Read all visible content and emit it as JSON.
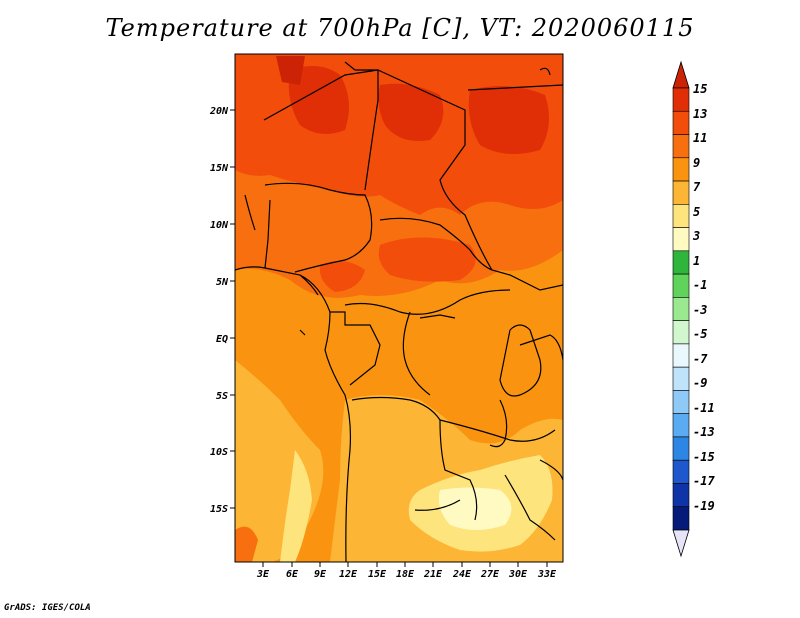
{
  "title": "Temperature at 700hPa [C], VT: 2020060115",
  "credit": "GrADS: IGES/COLA",
  "map": {
    "lat_labels": [
      "20N",
      "15N",
      "10N",
      "5N",
      "EQ",
      "5S",
      "10S",
      "15S"
    ],
    "lon_labels": [
      "3E",
      "6E",
      "9E",
      "12E",
      "15E",
      "18E",
      "21E",
      "24E",
      "27E",
      "30E",
      "33E"
    ]
  },
  "colorbar": {
    "labels": [
      "15",
      "13",
      "11",
      "9",
      "7",
      "5",
      "3",
      "1",
      "-1",
      "-3",
      "-5",
      "-7",
      "-9",
      "-11",
      "-13",
      "-15",
      "-17",
      "-19"
    ],
    "colors": [
      "#e02e06",
      "#f24d0b",
      "#f76f0f",
      "#fa9410",
      "#fcb535",
      "#fde47c",
      "#fffac2",
      "#2fb53c",
      "#5fd35a",
      "#9ae88f",
      "#d2f7cf",
      "#eaf7fc",
      "#bfe3fb",
      "#8ec9f7",
      "#5aabf1",
      "#2e86e4",
      "#1e58cc",
      "#0f34a8",
      "#061a7a"
    ],
    "top_arrow_color": "#cc2206",
    "bottom_arrow_color": "#e8e4f8"
  }
}
